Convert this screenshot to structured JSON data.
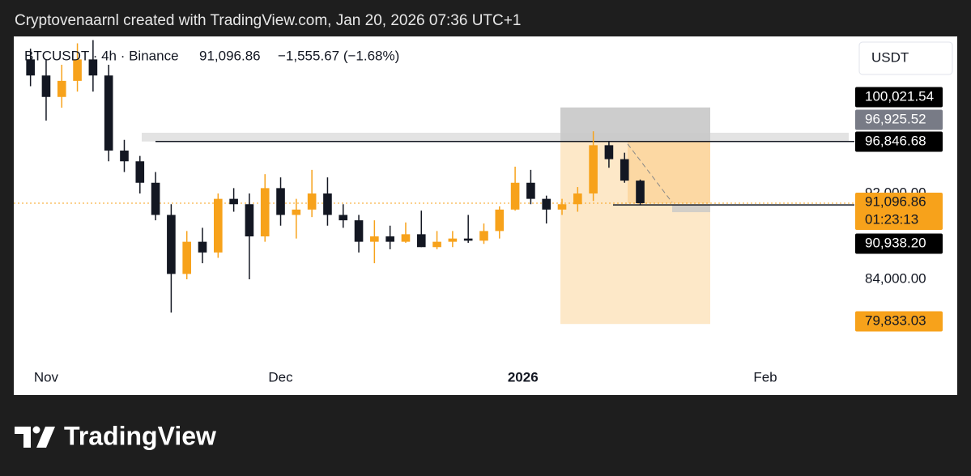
{
  "header": "Cryptovenaarnl created with TradingView.com, Jan 20, 2026 07:36 UTC+1",
  "chart_data": {
    "type": "candlestick",
    "symbol": "BTCUSDT · 4h · Binance",
    "last": "91,096.86",
    "change": "−1,555.67 (−1.68%)",
    "currency": "USDT",
    "open": [
      104500,
      103000,
      101000,
      102500,
      104500,
      103000,
      96000,
      95000,
      93000,
      90000,
      84500,
      87500,
      86500,
      91500,
      91000,
      88000,
      92500,
      90000,
      90500,
      92000,
      90000,
      89500,
      87500,
      88000,
      87500,
      88200,
      87000,
      87500,
      87800,
      87600,
      88500,
      90500,
      93000,
      91500,
      90500,
      91000,
      92000,
      96500,
      95200,
      93200
    ],
    "high": [
      105500,
      104500,
      104000,
      106000,
      106300,
      104000,
      97000,
      95500,
      94000,
      91000,
      88500,
      88800,
      92000,
      92500,
      92000,
      93800,
      93500,
      91500,
      94200,
      93500,
      91000,
      90000,
      89500,
      89000,
      89300,
      90400,
      88500,
      88500,
      90000,
      89200,
      90800,
      94500,
      94200,
      91800,
      91500,
      92600,
      97800,
      96800,
      95800,
      93300
    ],
    "low": [
      102000,
      98800,
      100000,
      101500,
      101500,
      95000,
      94000,
      92000,
      89500,
      80900,
      84000,
      85500,
      86000,
      90300,
      84000,
      87500,
      89000,
      87800,
      89800,
      89000,
      88800,
      86500,
      85500,
      86800,
      87400,
      87000,
      86800,
      87000,
      87400,
      87300,
      87800,
      90400,
      91000,
      89200,
      90000,
      90300,
      91300,
      94400,
      93000,
      90900
    ],
    "close": [
      103000,
      101000,
      102500,
      104500,
      103000,
      96000,
      95000,
      93000,
      90000,
      84500,
      87500,
      86500,
      91500,
      91000,
      88000,
      92500,
      90000,
      90500,
      92000,
      90000,
      89500,
      87500,
      88000,
      87500,
      88200,
      87000,
      87500,
      87800,
      87600,
      88500,
      90500,
      93000,
      91500,
      90500,
      91000,
      92000,
      96500,
      95200,
      93200,
      91096.86
    ],
    "up_color": "#f7a21b",
    "down_color": "#131722",
    "xlim": [
      -1.07,
      52.7
    ],
    "xticks": [
      {
        "value": 1,
        "label": "Nov"
      },
      {
        "value": 16,
        "label": "Dec"
      },
      {
        "value": 31.5,
        "label": "2026"
      },
      {
        "value": 47,
        "label": "Feb"
      }
    ],
    "ylim": [
      73208,
      106642
    ],
    "yticks": [
      {
        "value": 84000,
        "label": "84,000.00"
      },
      {
        "value": 92000,
        "label": "92,000.00"
      }
    ],
    "price_labels": [
      {
        "value": 100021.54,
        "label": "100,021.54",
        "color": "#000000"
      },
      {
        "value": 96925.52,
        "label": "96,925.52",
        "color": "#787b86"
      },
      {
        "value": 96846.68,
        "label": "96,846.68",
        "color": "#000000"
      },
      {
        "value": 91096.86,
        "label": "91,096.86",
        "color": "#f7a21b"
      },
      {
        "value": 90938.2,
        "label": "90,938.20",
        "color": "#000000"
      },
      {
        "value": 79833.03,
        "label": "79,833.03",
        "color": "#f7a21b"
      }
    ],
    "countdown": "01:23:13"
  },
  "footer": "TradingView"
}
